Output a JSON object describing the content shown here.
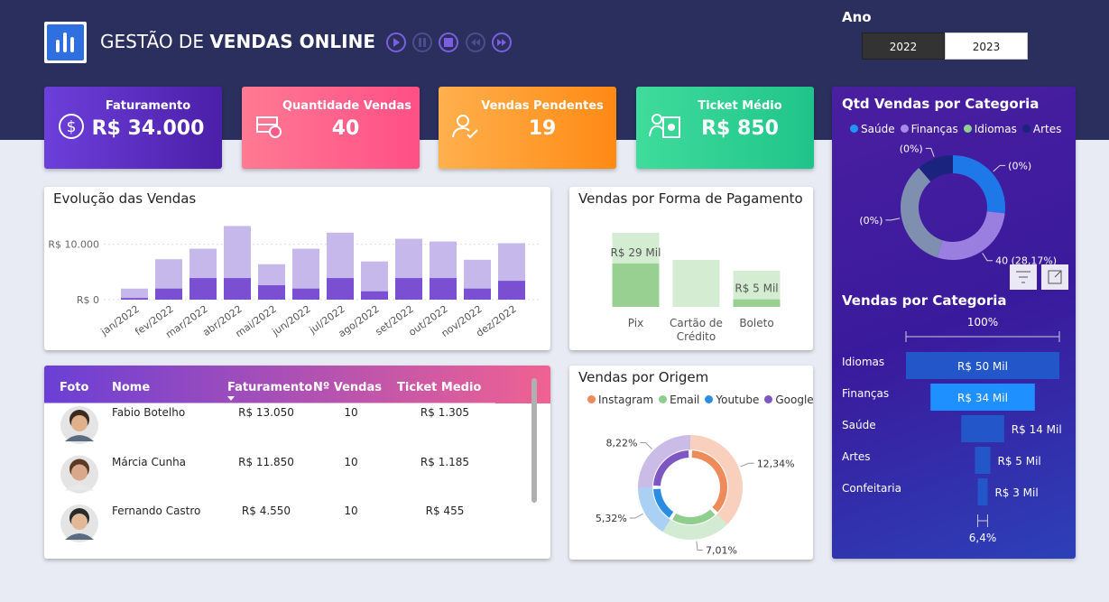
{
  "header": {
    "title_light": "GESTÃO DE",
    "title_bold": "VENDAS ONLINE"
  },
  "year_filter": {
    "label": "Ano",
    "options": [
      "2022",
      "2023"
    ],
    "selected": "2022"
  },
  "kpis": [
    {
      "label": "Faturamento",
      "value": "R$ 34.000"
    },
    {
      "label": "Quantidade Vendas",
      "value": "40"
    },
    {
      "label": "Vendas Pendentes",
      "value": "19"
    },
    {
      "label": "Ticket Médio",
      "value": "R$ 850"
    }
  ],
  "table": {
    "columns": [
      "Foto",
      "Nome",
      "Faturamento",
      "Nº Vendas",
      "Ticket Medio"
    ],
    "rows": [
      [
        "Fabio Botelho",
        "R$ 13.050",
        "10",
        "R$ 1.305"
      ],
      [
        "Márcia Cunha",
        "R$ 11.850",
        "10",
        "R$ 1.185"
      ],
      [
        "Fernando Castro",
        "R$ 4.550",
        "10",
        "R$ 455"
      ]
    ]
  },
  "chart_data": [
    {
      "type": "bar",
      "title": "Evolução das Vendas",
      "categories": [
        "jan/2022",
        "fev/2022",
        "mar/2022",
        "abr/2022",
        "mai/2022",
        "jun/2022",
        "jul/2022",
        "ago/2022",
        "set/2022",
        "out/2022",
        "nov/2022",
        "dez/2022"
      ],
      "series": [
        {
          "color": "#c7b8ec",
          "values": [
            2000,
            7300,
            9200,
            13300,
            6400,
            9200,
            12100,
            6900,
            11000,
            10500,
            7200,
            10200
          ]
        },
        {
          "color": "#7b4fd1",
          "values": [
            300,
            2000,
            3900,
            3900,
            2600,
            2000,
            3900,
            1500,
            3900,
            3900,
            2000,
            3400
          ]
        }
      ],
      "ylim": [
        0,
        15000
      ],
      "yticks": [
        {
          "value": 0,
          "label": "R$ 0"
        },
        {
          "value": 10000,
          "label": "R$ 10.000"
        }
      ],
      "grid": true
    },
    {
      "type": "bar",
      "title": "Vendas por Forma de Pagamento",
      "categories": [
        "Pix",
        "Cartão de Crédito",
        "Boleto"
      ],
      "series": [
        {
          "color": "#d4ecd2",
          "values": [
            49500,
            31400,
            24200
          ]
        },
        {
          "color": "#97d091",
          "values": [
            29000,
            null,
            5000
          ],
          "value_labels": [
            "R$ 29 Mil",
            null,
            "R$ 5 Mil"
          ]
        }
      ]
    },
    {
      "type": "donut",
      "title": "Vendas por Origem",
      "categories": [
        "Instagram",
        "Email",
        "Youtube",
        "Google"
      ],
      "values": [
        12.34,
        7.01,
        5.32,
        8.22
      ],
      "value_labels": [
        "12,34%",
        "7,01%",
        "5,32%",
        "8,22%"
      ],
      "colors": [
        "#ef8a5a",
        "#8fce8f",
        "#2b8de0",
        "#7e57c2"
      ],
      "legend": "top"
    },
    {
      "type": "donut",
      "title": "Qtd Vendas por Categoria",
      "categories": [
        "Saúde",
        "Finanças",
        "Idiomas",
        "Artes"
      ],
      "values": [
        38,
        40,
        48,
        16
      ],
      "colors": [
        "#1f78e8",
        "#9b7fe0",
        "#7f8fb0",
        "#1a237e"
      ],
      "legend_colors": [
        "#2196f3",
        "#a58be6",
        "#8fd18f",
        "#1a237e"
      ],
      "annotations": [
        "(0%)",
        "40 (28,17%)",
        "(0%)",
        "(0%)"
      ],
      "legend": "top"
    },
    {
      "type": "funnel",
      "title": "Vendas por Categoria",
      "categories": [
        "Idiomas",
        "Finanças",
        "Saúde",
        "Artes",
        "Confeitaria"
      ],
      "values": [
        50000,
        34000,
        14000,
        5000,
        3200
      ],
      "value_labels": [
        "R$ 50 Mil",
        "R$ 34 Mil",
        "R$ 14 Mil",
        "R$ 5 Mil",
        "R$ 3 Mil"
      ],
      "colors": [
        "#2356c9",
        "#1e90ff",
        "#2356c9",
        "#2356c9",
        "#2356c9"
      ],
      "annotations": [
        "100%",
        "6,4%"
      ]
    }
  ]
}
